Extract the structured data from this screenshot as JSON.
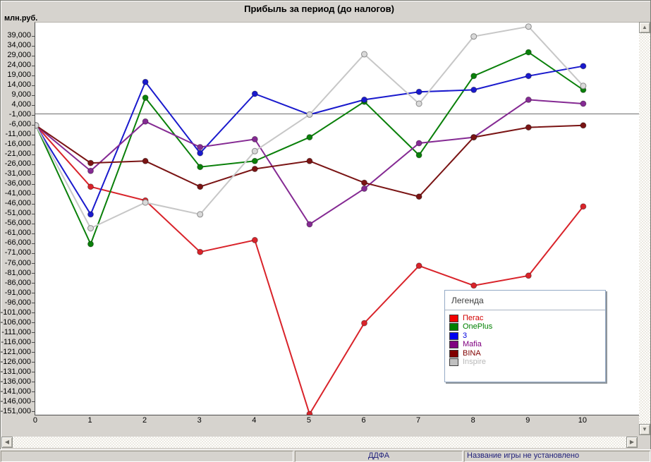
{
  "window": {
    "title": "Прибыль за период (до налогов)",
    "unit_label": "млн.руб."
  },
  "chart_data": {
    "type": "line",
    "title": "Прибыль за период (до налогов)",
    "ylabel": "млн.руб.",
    "xlabel": "",
    "categories": [
      "0",
      "1",
      "2",
      "3",
      "4",
      "5",
      "6",
      "7",
      "8",
      "9",
      "10"
    ],
    "series": [
      {
        "name": "Пегас",
        "color": "#d9232a",
        "values": [
          -6000,
          -37000,
          -44000,
          -70000,
          -64000,
          -152000,
          -106000,
          -77000,
          -87000,
          -82000,
          -47000
        ]
      },
      {
        "name": "OnePlus",
        "color": "#0a800a",
        "values": [
          -6000,
          -66000,
          8000,
          -27000,
          -24000,
          -12000,
          6000,
          -21000,
          19000,
          31000,
          12000
        ]
      },
      {
        "name": "3",
        "color": "#1a1acd",
        "values": [
          -6000,
          -51000,
          16000,
          -20000,
          10000,
          -500,
          7000,
          11000,
          12000,
          19000,
          24000
        ]
      },
      {
        "name": "Mafia",
        "color": "#852a93",
        "values": [
          -6000,
          -29000,
          -4000,
          -17000,
          -13000,
          -56000,
          -38000,
          -15000,
          -12000,
          7000,
          5000
        ]
      },
      {
        "name": "BINA",
        "color": "#7a1414",
        "values": [
          -6000,
          -25000,
          -24000,
          -37000,
          -28000,
          -24000,
          -35000,
          -42000,
          -12000,
          -7000,
          -6000
        ]
      },
      {
        "name": "Inspire",
        "color": "#c7c7c7",
        "marker_fill": "#d9d9d9",
        "marker_stroke": "#8a8a8a",
        "values": [
          -6000,
          -58000,
          -45000,
          -51000,
          -19000,
          -500,
          30000,
          5000,
          39000,
          44000,
          14000
        ]
      }
    ],
    "yaxis": {
      "max": 39000,
      "min": -151000,
      "step": 5000,
      "tick_format": "thousands-comma"
    },
    "xaxis": {
      "min": 0,
      "max": 10,
      "step": 1
    },
    "grid": false,
    "zero_line": true,
    "legend_position": "overlay-bottom-right"
  },
  "legend": {
    "title": "Легенда",
    "items": [
      {
        "label": "Пегас",
        "color": "#f20000",
        "text_color": "#d20000"
      },
      {
        "label": "OnePlus",
        "color": "#008000",
        "text_color": "#008000"
      },
      {
        "label": "3",
        "color": "#0000f0",
        "text_color": "#0000e0"
      },
      {
        "label": "Mafia",
        "color": "#800080",
        "text_color": "#800080"
      },
      {
        "label": "BINA",
        "color": "#800000",
        "text_color": "#800000"
      },
      {
        "label": "Inspire",
        "color": "#c0c0c0",
        "text_color": "#b8b8b8"
      }
    ]
  },
  "scrollbars": {
    "up_glyph": "▲",
    "down_glyph": "▼",
    "left_glyph": "◀",
    "right_glyph": "▶"
  },
  "status_bar": {
    "panel_left": "",
    "panel_middle": "ДДФА",
    "panel_right": "Название игры не установлено"
  }
}
